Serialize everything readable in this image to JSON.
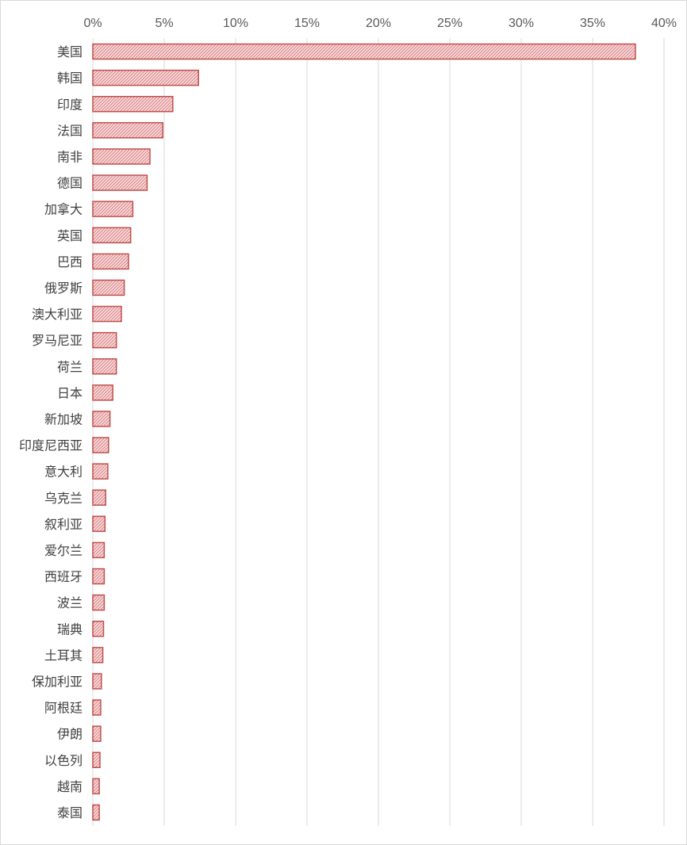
{
  "chart_data": {
    "type": "bar",
    "orientation": "horizontal",
    "title": "",
    "xlabel": "",
    "ylabel": "",
    "xlim": [
      0,
      40
    ],
    "x_ticks": [
      "0%",
      "5%",
      "10%",
      "15%",
      "20%",
      "25%",
      "30%",
      "35%",
      "40%"
    ],
    "x_axis_position": "top",
    "grid": "vertical",
    "legend": "none",
    "bar_fill": "#f7c6c9",
    "bar_stroke": "#c0504d",
    "bar_pattern": "diagonal-hatch",
    "categories": [
      "美国",
      "韩国",
      "印度",
      "法国",
      "南非",
      "德国",
      "加拿大",
      "英国",
      "巴西",
      "俄罗斯",
      "澳大利亚",
      "罗马尼亚",
      "荷兰",
      "日本",
      "新加坡",
      "印度尼西亚",
      "意大利",
      "乌克兰",
      "叙利亚",
      "爱尔兰",
      "西班牙",
      "波兰",
      "瑞典",
      "土耳其",
      "保加利亚",
      "阿根廷",
      "伊朗",
      "以色列",
      "越南",
      "泰国"
    ],
    "values": [
      38.0,
      7.4,
      5.6,
      4.9,
      4.0,
      3.8,
      2.8,
      2.65,
      2.5,
      2.2,
      2.0,
      1.65,
      1.65,
      1.4,
      1.2,
      1.1,
      1.05,
      0.9,
      0.85,
      0.8,
      0.8,
      0.8,
      0.75,
      0.7,
      0.6,
      0.55,
      0.55,
      0.5,
      0.45,
      0.45
    ]
  }
}
